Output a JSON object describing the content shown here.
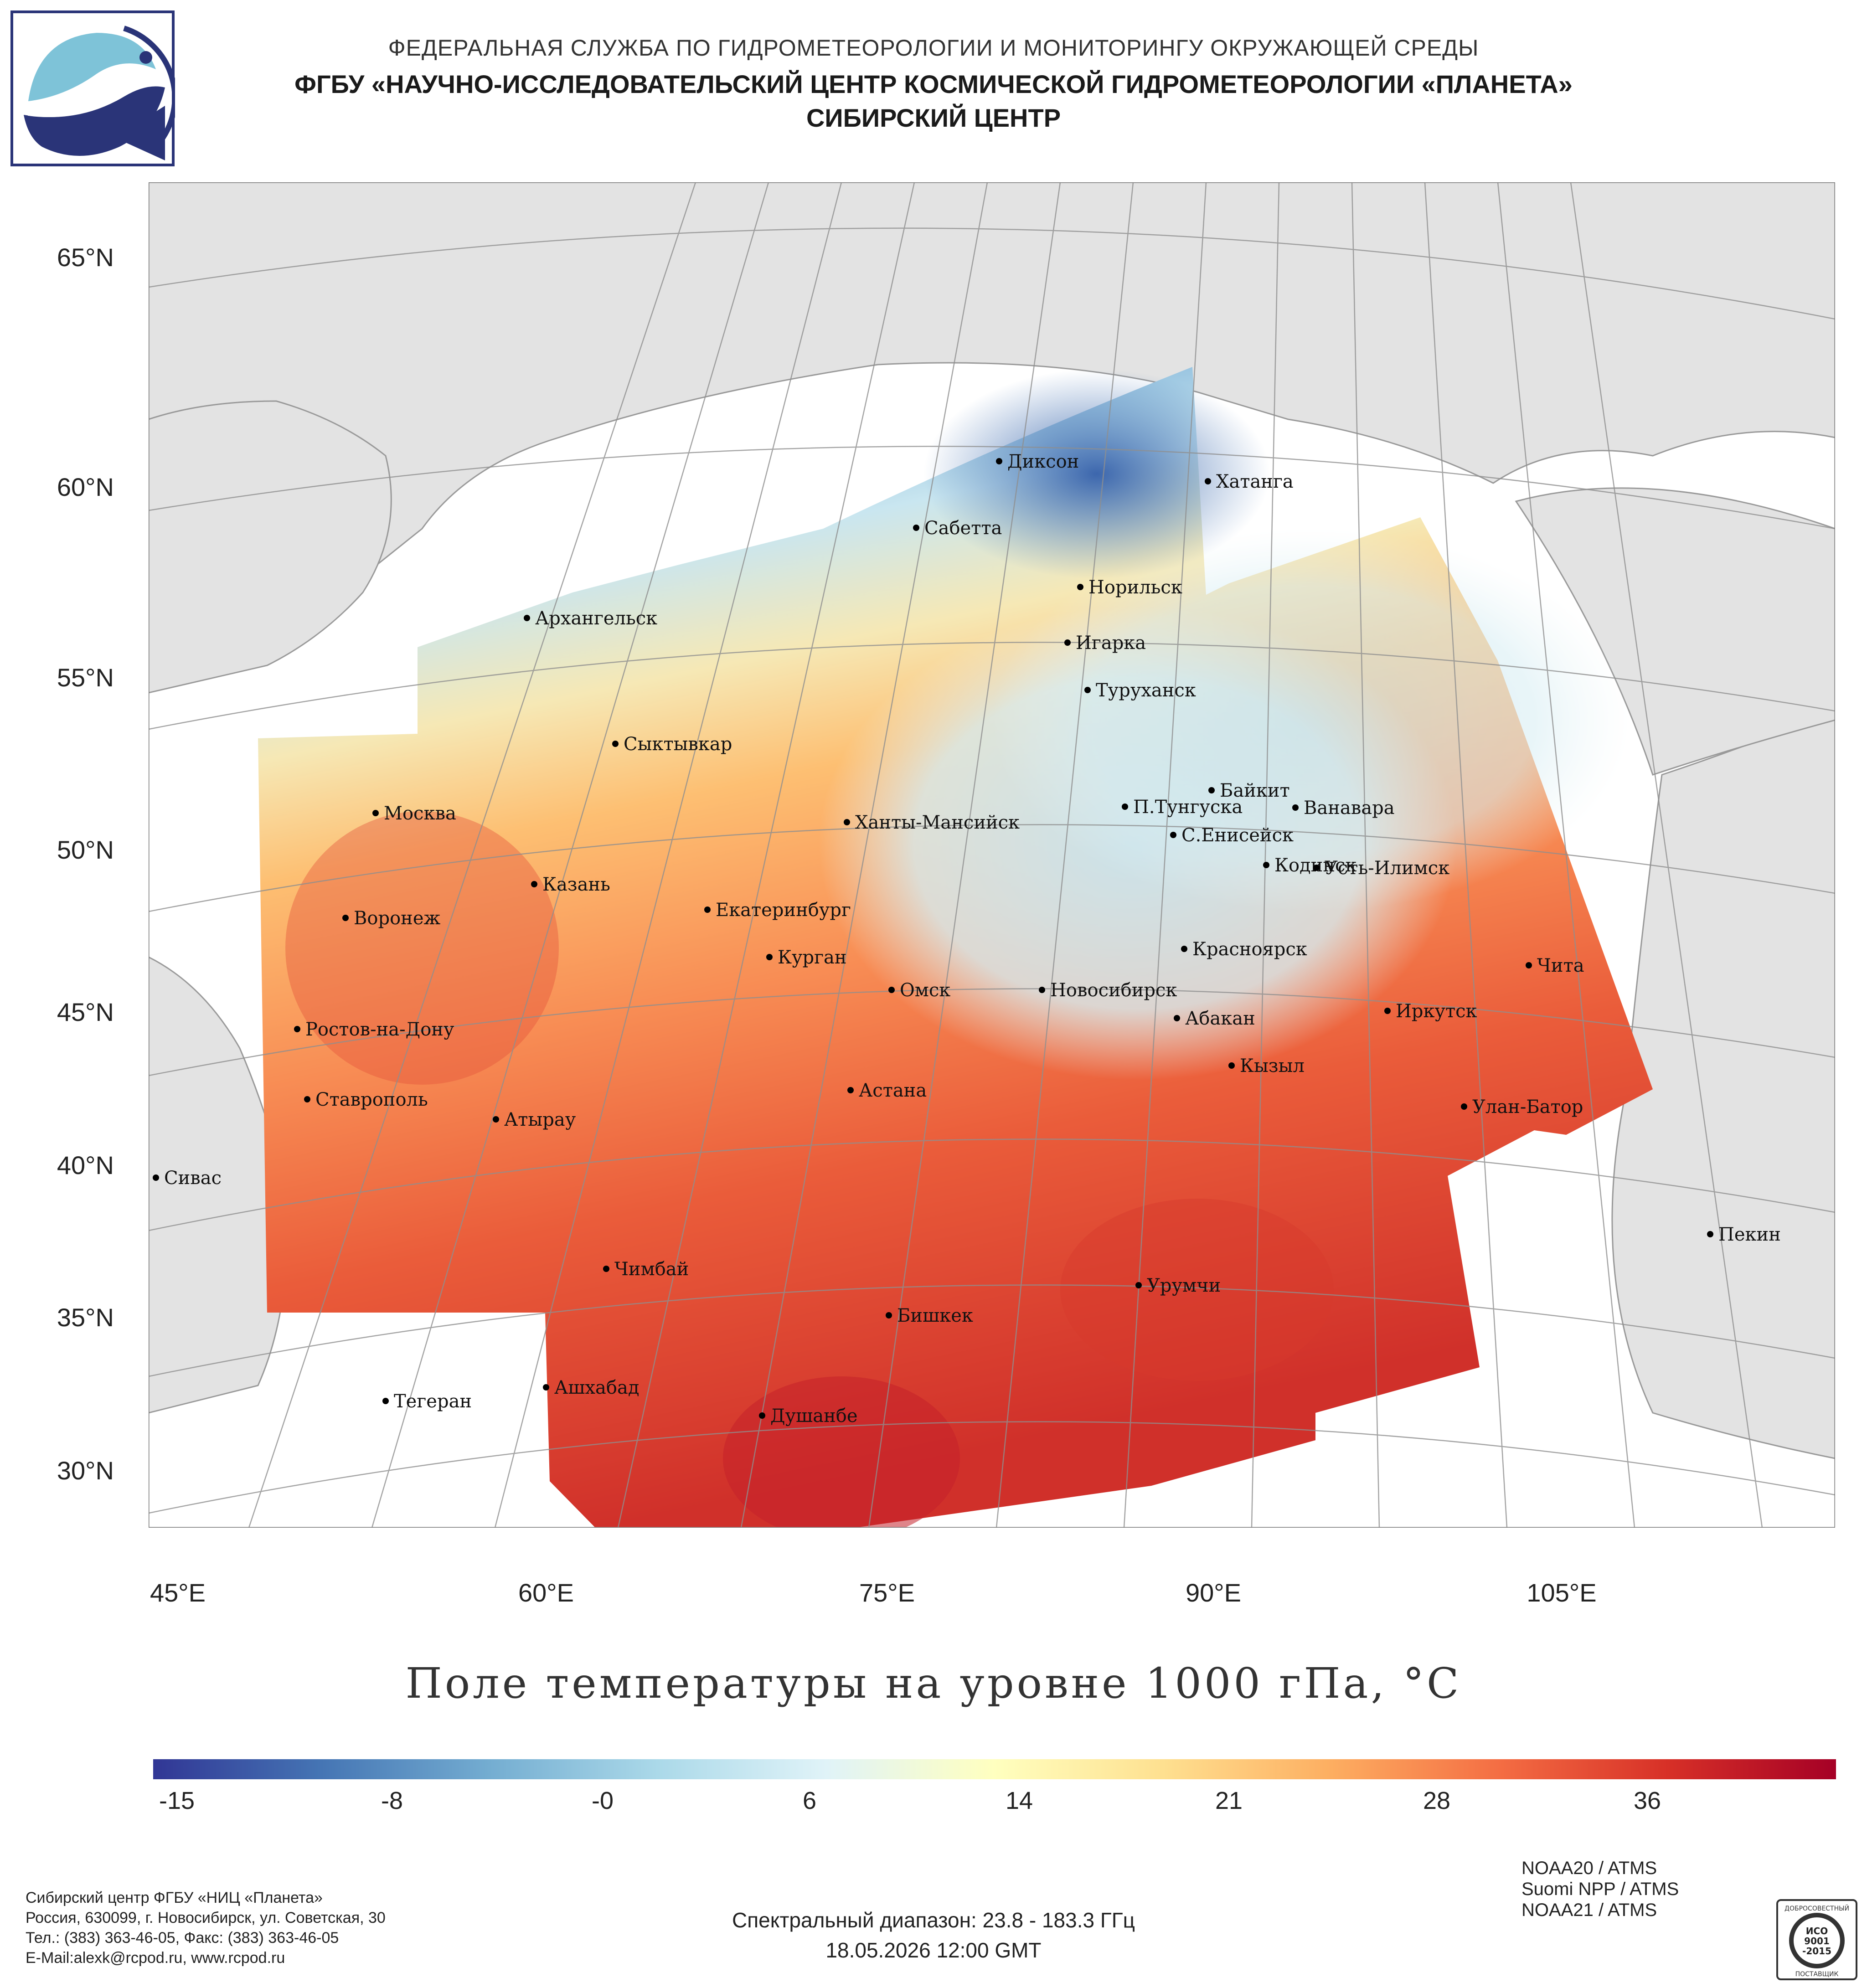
{
  "header": {
    "line1": "ФЕДЕРАЛЬНАЯ СЛУЖБА ПО ГИДРОМЕТЕОРОЛОГИИ И МОНИТОРИНГУ ОКРУЖАЮЩЕЙ СРЕДЫ",
    "line2": "ФГБУ «НАУЧНО-ИССЛЕДОВАТЕЛЬСКИЙ ЦЕНТР КОСМИЧЕСКОЙ ГИДРОМЕТЕОРОЛОГИИ «ПЛАНЕТА»",
    "line3": "СИБИРСКИЙ ЦЕНТР"
  },
  "map": {
    "lat_labels": [
      "65°N",
      "60°N",
      "55°N",
      "50°N",
      "45°N",
      "40°N",
      "35°N",
      "30°N"
    ],
    "lon_labels": [
      "45°E",
      "60°E",
      "75°E",
      "90°E",
      "105°E"
    ],
    "title": "Поле температуры на уровне 1000 гПа, °C",
    "cities": [
      {
        "name": "Диксон"
      },
      {
        "name": "Хатанга"
      },
      {
        "name": "Сабетта"
      },
      {
        "name": "Норильск"
      },
      {
        "name": "Архангельск"
      },
      {
        "name": "Игарка"
      },
      {
        "name": "Туруханск"
      },
      {
        "name": "Сыктывкар"
      },
      {
        "name": "Байкит"
      },
      {
        "name": "П.Тунгуска"
      },
      {
        "name": "Ванавара"
      },
      {
        "name": "Москва"
      },
      {
        "name": "Ханты-Мансийск"
      },
      {
        "name": "С.Енисейск"
      },
      {
        "name": "Кодинск"
      },
      {
        "name": "Усть-Илимск"
      },
      {
        "name": "Казань"
      },
      {
        "name": "Екатеринбург"
      },
      {
        "name": "Воронеж"
      },
      {
        "name": "Курган"
      },
      {
        "name": "Красноярск"
      },
      {
        "name": "Чита"
      },
      {
        "name": "Омск"
      },
      {
        "name": "Новосибирск"
      },
      {
        "name": "Иркутск"
      },
      {
        "name": "Абакан"
      },
      {
        "name": "Ростов-на-Дону"
      },
      {
        "name": "Кызыл"
      },
      {
        "name": "Астана"
      },
      {
        "name": "Ставрополь"
      },
      {
        "name": "Улан-Батор"
      },
      {
        "name": "Атырау"
      },
      {
        "name": "Сивас"
      },
      {
        "name": "Пекин"
      },
      {
        "name": "Чимбай"
      },
      {
        "name": "Урумчи"
      },
      {
        "name": "Бишкек"
      },
      {
        "name": "Ашхабад"
      },
      {
        "name": "Тегеран"
      },
      {
        "name": "Душанбе"
      }
    ]
  },
  "colorbar": {
    "labels": [
      "-15",
      "-8",
      "-0",
      "6",
      "14",
      "21",
      "28",
      "36"
    ],
    "colors": [
      "#313695",
      "#4575b4",
      "#74add1",
      "#abd9e9",
      "#e0f3f8",
      "#ffffbf",
      "#fee090",
      "#fdae61",
      "#f46d43",
      "#d73027",
      "#a50026"
    ]
  },
  "footer": {
    "org_line1": "Сибирский центр ФГБУ «НИЦ «Планета»",
    "org_line2": "Россия, 630099, г. Новосибирск, ул. Советская, 30",
    "org_line3": "Тел.: (383) 363-46-05, Факс: (383) 363-46-05",
    "org_line4": "E-Mail:alexk@rcpod.ru, www.rcpod.ru",
    "spectral": "Спектральный диапазон: 23.8 - 183.3 ГГц",
    "datetime": "18.05.2026 12:00 GMT",
    "sat1": "NOAA20 / ATMS",
    "sat2": "Suomi NPP / ATMS",
    "sat3": "NOAA21 / ATMS",
    "iso_top": "ДОБРОСОВЕСТНЫЙ",
    "iso_mid1": "ИСО",
    "iso_mid2": "9001",
    "iso_mid3": "-2015",
    "iso_bottom": "ПОСТАВЩИК"
  }
}
